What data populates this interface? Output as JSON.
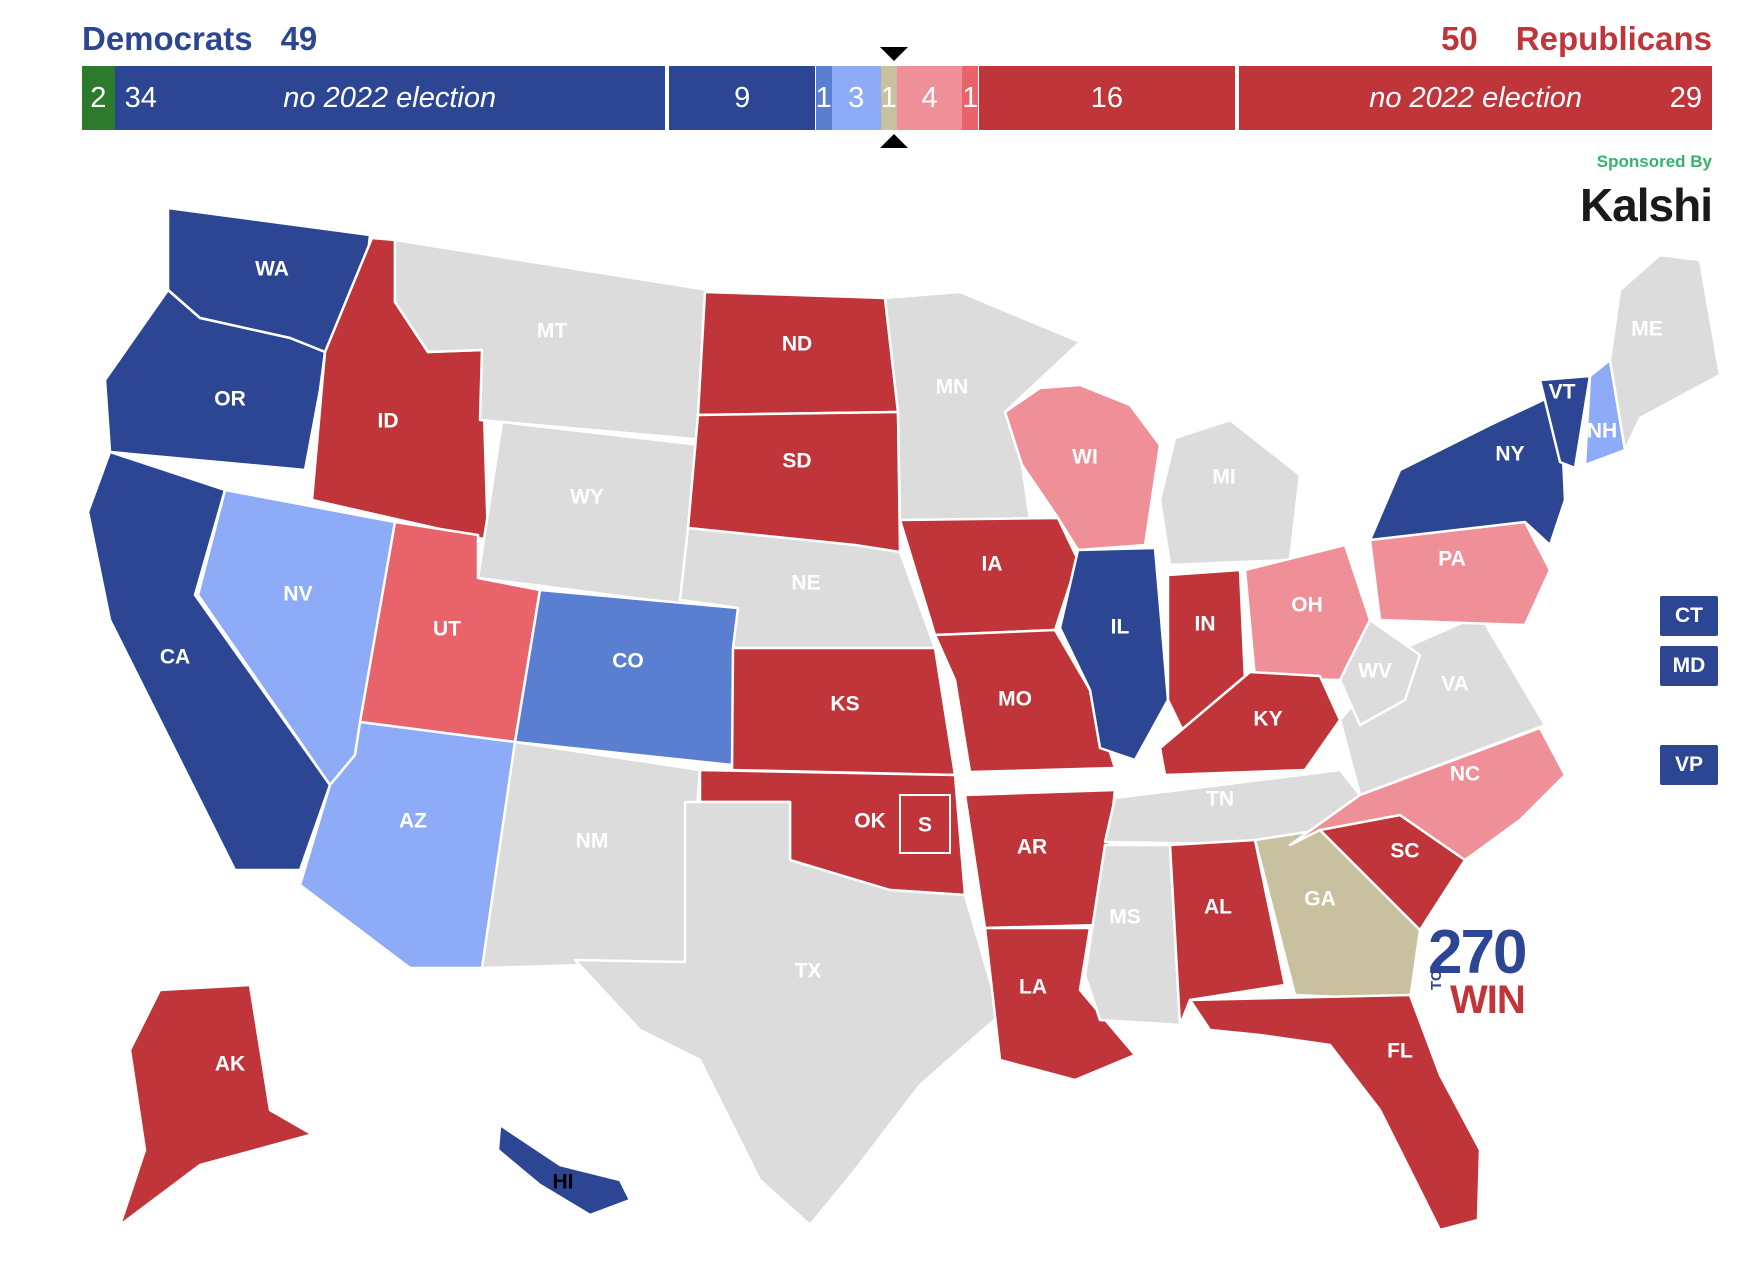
{
  "header": {
    "dem_label": "Democrats",
    "dem_total": "49",
    "rep_total": "50",
    "rep_label": "Republicans"
  },
  "bar": [
    {
      "value": 2,
      "label": "2",
      "color": "#2d7a2d"
    },
    {
      "value": 34,
      "label": "34",
      "color": "#2c4694",
      "note": "no 2022 election"
    },
    {
      "value": 9,
      "label": "9",
      "color": "#2c4694"
    },
    {
      "value": 1,
      "label": "1",
      "color": "#5b7fd0"
    },
    {
      "value": 3,
      "label": "3",
      "color": "#8eabf7"
    },
    {
      "value": 1,
      "label": "1",
      "color": "#c8c09f"
    },
    {
      "value": 4,
      "label": "4",
      "color": "#ef8f97"
    },
    {
      "value": 1,
      "label": "1",
      "color": "#e9636b"
    },
    {
      "value": 16,
      "label": "16",
      "color": "#c0353a"
    },
    {
      "value": 29,
      "label": "29",
      "color": "#c0353a",
      "note": "no 2022 election"
    }
  ],
  "sponsor": {
    "text": "Sponsored By",
    "brand": "Kalshi"
  },
  "side_boxes": [
    "CT",
    "MD",
    "VP"
  ],
  "logo": {
    "num": "270",
    "to": "TO",
    "win": "WIN"
  },
  "colors": {
    "safe_dem": "#2c4694",
    "likely_dem": "#5b7fd0",
    "lean_dem": "#8eabf7",
    "tossup": "#c8c09f",
    "lean_rep": "#ef8f97",
    "likely_rep": "#e9636b",
    "safe_rep": "#c0353a",
    "no_election": "#dcdcdc"
  },
  "states": [
    {
      "abbr": "WA",
      "rating": "safe_dem"
    },
    {
      "abbr": "OR",
      "rating": "safe_dem"
    },
    {
      "abbr": "CA",
      "rating": "safe_dem"
    },
    {
      "abbr": "NV",
      "rating": "lean_dem"
    },
    {
      "abbr": "ID",
      "rating": "safe_rep"
    },
    {
      "abbr": "MT",
      "rating": "no_election"
    },
    {
      "abbr": "WY",
      "rating": "no_election"
    },
    {
      "abbr": "UT",
      "rating": "likely_rep"
    },
    {
      "abbr": "AZ",
      "rating": "lean_dem"
    },
    {
      "abbr": "CO",
      "rating": "likely_dem"
    },
    {
      "abbr": "NM",
      "rating": "no_election"
    },
    {
      "abbr": "ND",
      "rating": "safe_rep"
    },
    {
      "abbr": "SD",
      "rating": "safe_rep"
    },
    {
      "abbr": "NE",
      "rating": "no_election"
    },
    {
      "abbr": "KS",
      "rating": "safe_rep"
    },
    {
      "abbr": "OK",
      "rating": "safe_rep"
    },
    {
      "abbr": "TX",
      "rating": "no_election"
    },
    {
      "abbr": "MN",
      "rating": "no_election"
    },
    {
      "abbr": "IA",
      "rating": "safe_rep"
    },
    {
      "abbr": "MO",
      "rating": "safe_rep"
    },
    {
      "abbr": "AR",
      "rating": "safe_rep"
    },
    {
      "abbr": "LA",
      "rating": "safe_rep"
    },
    {
      "abbr": "WI",
      "rating": "lean_rep"
    },
    {
      "abbr": "IL",
      "rating": "safe_dem"
    },
    {
      "abbr": "MI",
      "rating": "no_election"
    },
    {
      "abbr": "IN",
      "rating": "safe_rep"
    },
    {
      "abbr": "OH",
      "rating": "lean_rep"
    },
    {
      "abbr": "KY",
      "rating": "safe_rep"
    },
    {
      "abbr": "TN",
      "rating": "no_election"
    },
    {
      "abbr": "MS",
      "rating": "no_election"
    },
    {
      "abbr": "AL",
      "rating": "safe_rep"
    },
    {
      "abbr": "GA",
      "rating": "tossup"
    },
    {
      "abbr": "FL",
      "rating": "safe_rep"
    },
    {
      "abbr": "SC",
      "rating": "safe_rep"
    },
    {
      "abbr": "NC",
      "rating": "lean_rep"
    },
    {
      "abbr": "VA",
      "rating": "no_election"
    },
    {
      "abbr": "WV",
      "rating": "no_election"
    },
    {
      "abbr": "PA",
      "rating": "lean_rep"
    },
    {
      "abbr": "NY",
      "rating": "safe_dem"
    },
    {
      "abbr": "VT",
      "rating": "safe_dem"
    },
    {
      "abbr": "NH",
      "rating": "lean_dem"
    },
    {
      "abbr": "ME",
      "rating": "no_election"
    },
    {
      "abbr": "AK",
      "rating": "safe_rep"
    },
    {
      "abbr": "HI",
      "rating": "safe_dem"
    }
  ],
  "ok_special": "S"
}
